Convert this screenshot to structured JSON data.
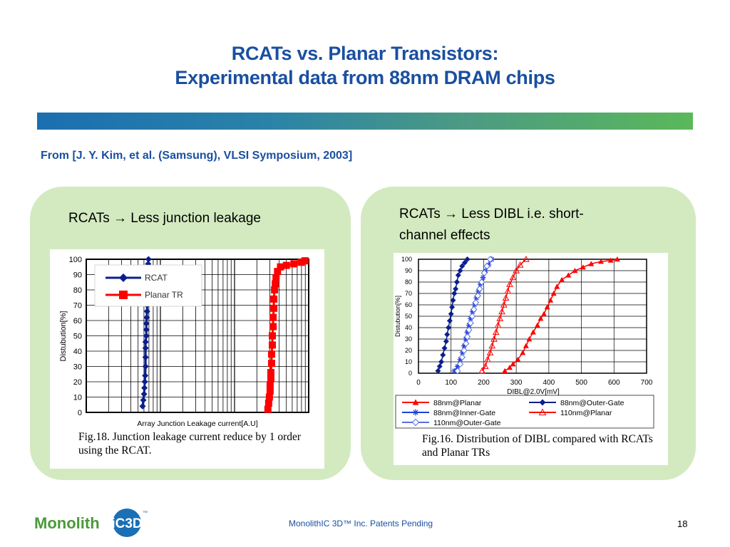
{
  "slide": {
    "title_line1": "RCATs vs. Planar Transistors:",
    "title_line2": "Experimental data from 88nm DRAM chips",
    "citation": "From [J. Y. Kim, et al. (Samsung), VLSI Symposium, 2003]"
  },
  "left_panel": {
    "heading": "RCATs → Less junction leakage",
    "caption": "Fig.18. Junction leakage current reduce by 1 order using the RCAT."
  },
  "right_panel": {
    "heading": "RCATs → Less DIBL i.e. short-channel effects",
    "caption": "Fig.16. Distribution of DIBL compared with RCATs and Planar TRs"
  },
  "footer": {
    "logo_part1": "Monolith",
    "logo_part2": "iC3D",
    "logo_tm": "™",
    "text": "MonolithIC 3D™ Inc. Patents Pending",
    "page_number": "18"
  },
  "colors": {
    "title_blue": "#1a4fa0",
    "panel_green": "#d3eac0",
    "rcat_navy": "#0a1f8f",
    "planar_red": "#ff0000",
    "blue": "#1f3fd8",
    "light_blue": "#5a6ee0"
  },
  "chart_data": [
    {
      "type": "line",
      "title": "",
      "xlabel": "Array Junction Leakage current[A.U]",
      "ylabel": "Distubution[%]",
      "ylim": [
        0,
        100
      ],
      "yticks": [
        "100",
        "90",
        "80",
        "70",
        "60",
        "50",
        "40",
        "30",
        "20",
        "10",
        "0"
      ],
      "x_scale": "log",
      "legend_position": "top-left",
      "series": [
        {
          "name": "RCAT",
          "color": "#0a1f8f",
          "marker": "diamond",
          "x": [
            0.76,
            0.77,
            0.78,
            0.785,
            0.79,
            0.795,
            0.8,
            0.8,
            0.8,
            0.8,
            0.81,
            0.81,
            0.81,
            0.815,
            0.82,
            0.82,
            0.82,
            0.825,
            0.83,
            0.83,
            0.83,
            0.83,
            0.835,
            0.84
          ],
          "y": [
            4,
            8,
            12,
            16,
            20,
            24,
            30,
            36,
            42,
            46,
            50,
            54,
            58,
            62,
            66,
            70,
            74,
            78,
            82,
            86,
            90,
            94,
            97,
            100
          ]
        },
        {
          "name": "Planar TR",
          "color": "#ff0000",
          "marker": "square",
          "x": [
            2.45,
            2.46,
            2.47,
            2.48,
            2.48,
            2.49,
            2.49,
            2.5,
            2.5,
            2.51,
            2.51,
            2.52,
            2.52,
            2.53,
            2.53,
            2.54,
            2.55,
            2.56,
            2.58,
            2.62,
            2.7,
            2.8,
            2.9,
            2.95
          ],
          "y": [
            2,
            6,
            10,
            14,
            18,
            22,
            26,
            32,
            38,
            44,
            50,
            56,
            62,
            68,
            74,
            80,
            84,
            88,
            92,
            95,
            96,
            97,
            98,
            99
          ]
        }
      ]
    },
    {
      "type": "line",
      "title": "",
      "xlabel": "DIBL@2.0V[mV]",
      "ylabel": "Distubution[%]",
      "xlim": [
        0,
        700
      ],
      "ylim": [
        0,
        100
      ],
      "xticks": [
        "0",
        "100",
        "200",
        "300",
        "400",
        "500",
        "600",
        "700"
      ],
      "yticks": [
        "100",
        "90",
        "80",
        "70",
        "60",
        "50",
        "40",
        "30",
        "20",
        "10",
        "0"
      ],
      "legend_position": "bottom",
      "series": [
        {
          "name": "88nm@Planar",
          "color": "#ff0000",
          "marker": "filled-triangle",
          "x": [
            265,
            280,
            290,
            305,
            320,
            330,
            340,
            352,
            365,
            375,
            385,
            395,
            405,
            415,
            425,
            440,
            460,
            480,
            505,
            530,
            560,
            590,
            610
          ],
          "y": [
            2,
            5,
            8,
            12,
            18,
            24,
            30,
            36,
            42,
            48,
            52,
            58,
            64,
            70,
            76,
            82,
            86,
            90,
            93,
            96,
            98,
            99,
            100
          ]
        },
        {
          "name": "88nm@Outer-Gate",
          "color": "#0a1f8f",
          "marker": "diamond",
          "x": [
            60,
            65,
            70,
            75,
            80,
            85,
            88,
            92,
            96,
            100,
            103,
            106,
            110,
            114,
            118,
            122,
            128,
            134,
            142,
            150
          ],
          "y": [
            2,
            6,
            10,
            16,
            22,
            28,
            34,
            40,
            46,
            52,
            58,
            64,
            70,
            74,
            80,
            86,
            90,
            94,
            97,
            100
          ]
        },
        {
          "name": "88nm@Inner-Gate",
          "color": "#1f3fd8",
          "marker": "asterisk",
          "x": [
            110,
            120,
            128,
            135,
            140,
            145,
            150,
            155,
            160,
            166,
            172,
            178,
            184,
            190,
            198,
            206,
            215,
            225
          ],
          "y": [
            2,
            6,
            12,
            18,
            24,
            30,
            36,
            42,
            48,
            54,
            60,
            66,
            72,
            78,
            84,
            90,
            95,
            100
          ]
        },
        {
          "name": "110nm@Planar",
          "color": "#ff0000",
          "marker": "open-triangle",
          "x": [
            195,
            205,
            212,
            220,
            226,
            232,
            238,
            244,
            250,
            256,
            262,
            268,
            274,
            280,
            290,
            300,
            312,
            330
          ],
          "y": [
            2,
            6,
            12,
            18,
            24,
            30,
            36,
            42,
            48,
            54,
            60,
            66,
            72,
            78,
            84,
            90,
            95,
            100
          ]
        },
        {
          "name": "110nm@Outer-Gate",
          "color": "#5a6ee0",
          "marker": "open-diamond",
          "x": [
            120,
            128,
            134,
            140,
            146,
            150,
            155,
            160,
            165,
            170,
            176,
            182,
            188,
            194,
            202,
            210,
            220
          ],
          "y": [
            2,
            8,
            14,
            20,
            26,
            32,
            38,
            44,
            50,
            56,
            62,
            68,
            74,
            80,
            88,
            94,
            100
          ]
        }
      ]
    }
  ]
}
